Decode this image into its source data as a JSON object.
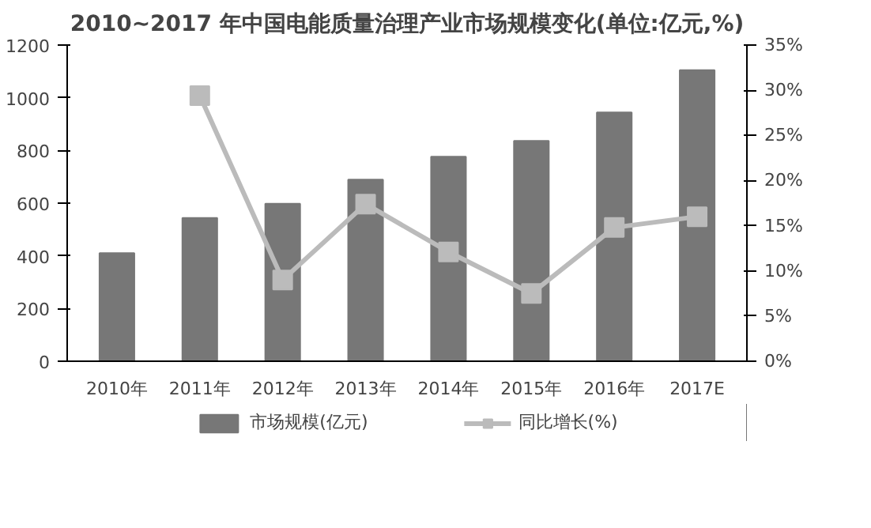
{
  "chart_data": {
    "type": "bar",
    "title": "2010~2017 年中国电能质量治理产业市场规模变化(单位:亿元,%)",
    "categories": [
      "2010年",
      "2011年",
      "2012年",
      "2013年",
      "2014年",
      "2015年",
      "2016年",
      "2017E"
    ],
    "series": [
      {
        "name": "市场规模(亿元)",
        "color": "#777777",
        "values": [
          410,
          544,
          598,
          689,
          776,
          836,
          944,
          1105
        ]
      },
      {
        "name": "同比增长(%)",
        "type": "line",
        "axis": "y2",
        "color": "#bbbbbb",
        "marker": "square",
        "values": [
          null,
          29.4,
          9.0,
          17.4,
          12.1,
          7.5,
          14.8,
          16.0
        ]
      }
    ],
    "ylim": [
      0,
      1200
    ],
    "yticks": [
      0,
      200,
      400,
      600,
      800,
      1000,
      1200
    ],
    "y2lim": [
      0,
      35
    ],
    "y2ticks": [
      {
        "value": 0,
        "label": "0%"
      },
      {
        "value": 5,
        "label": "5%"
      },
      {
        "value": 10,
        "label": "10%"
      },
      {
        "value": 15,
        "label": "15%"
      },
      {
        "value": 20,
        "label": "20%"
      },
      {
        "value": 25,
        "label": "25%"
      },
      {
        "value": 30,
        "label": "30%"
      },
      {
        "value": 35,
        "label": "35%"
      }
    ],
    "grid": false,
    "legend": "bottom"
  }
}
